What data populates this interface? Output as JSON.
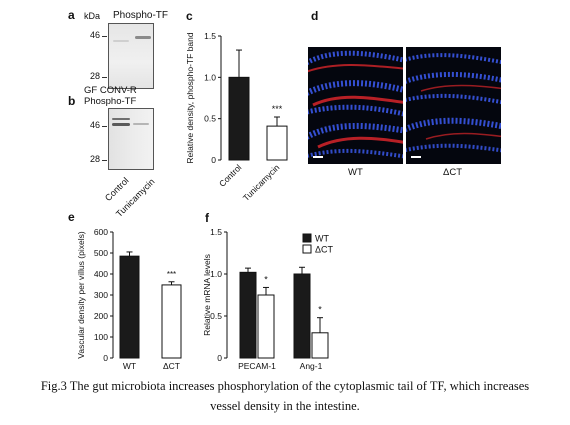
{
  "panels": {
    "a": {
      "label": "a",
      "unit_label": "kDa",
      "title": "Phospho-TF",
      "markers": [
        "46",
        "28"
      ]
    },
    "b": {
      "label": "b",
      "title_line1": "GF CONV-R",
      "title_line2": "Phospho-TF",
      "markers": [
        "46",
        "28"
      ],
      "lanes": [
        "Control",
        "Tunicamycin"
      ]
    },
    "c": {
      "label": "c"
    },
    "d": {
      "label": "d",
      "captions": [
        "WT",
        "ΔCT"
      ],
      "colors": {
        "nuclei": "#3a58e8",
        "vessels": "#d8262a",
        "background": "#04060e"
      }
    },
    "e": {
      "label": "e"
    },
    "f": {
      "label": "f"
    }
  },
  "caption": {
    "line1": "Fig.3 The gut microbiota increases phosphorylation of the cytoplasmic tail of TF, which increases",
    "line2": "vessel density in the intestine."
  },
  "chart_data": [
    {
      "panel": "c",
      "type": "bar",
      "categories": [
        "Control",
        "Tunicamycin"
      ],
      "values": [
        1.0,
        0.41
      ],
      "error": [
        0.33,
        0.11
      ],
      "fill": [
        "#1a1a1a",
        "#ffffff"
      ],
      "significance": [
        "",
        "***"
      ],
      "ylabel": "Relative density, phospho-TF band",
      "ylim": [
        0,
        1.5
      ],
      "yticks": [
        "0",
        "0.5",
        "1.0",
        "1.5"
      ]
    },
    {
      "panel": "e",
      "type": "bar",
      "categories": [
        "WT",
        "ΔCT"
      ],
      "values": [
        485,
        348
      ],
      "error": [
        20,
        15
      ],
      "fill": [
        "#1a1a1a",
        "#ffffff"
      ],
      "significance": [
        "",
        "***"
      ],
      "ylabel": "Vascular density per villus (pixels)",
      "ylim": [
        0,
        600
      ],
      "yticks": [
        "0",
        "100",
        "200",
        "300",
        "400",
        "500",
        "600"
      ]
    },
    {
      "panel": "f",
      "type": "bar",
      "categories": [
        "PECAM-1",
        "Ang-1"
      ],
      "series": [
        {
          "name": "WT",
          "values": [
            1.02,
            1.0
          ],
          "error": [
            0.05,
            0.08
          ],
          "fill": "#1a1a1a"
        },
        {
          "name": "ΔCT",
          "values": [
            0.75,
            0.3
          ],
          "error": [
            0.09,
            0.18
          ],
          "fill": "#ffffff"
        }
      ],
      "significance": [
        "*",
        "*"
      ],
      "ylabel": "Relative mRNA levels",
      "ylim": [
        0,
        1.5
      ],
      "yticks": [
        "0",
        "0.5",
        "1.0",
        "1.5"
      ],
      "legend_position": "top-right"
    }
  ]
}
